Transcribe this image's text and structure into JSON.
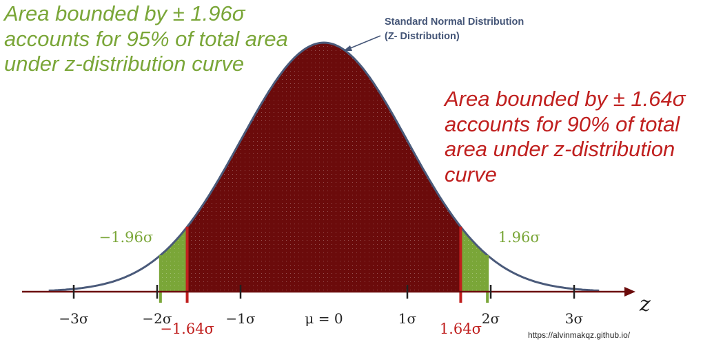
{
  "chart_data": {
    "type": "area",
    "title": "Standard Normal Distribution",
    "subtitle": "(Z- Distribution)",
    "x_axis_label": "z",
    "xlim": [
      -3.5,
      3.5
    ],
    "curve": {
      "mean": 0,
      "sd": 1
    },
    "tick_values": [
      -3,
      -2,
      -1,
      0,
      1,
      2,
      3
    ],
    "tick_labels": [
      "−3σ",
      "−2σ",
      "−1σ",
      "μ = 0",
      "1σ",
      "2σ",
      "3σ"
    ],
    "regions": [
      {
        "from": -1.96,
        "to": 1.96,
        "color": "#7aa638"
      },
      {
        "from": -1.64,
        "to": 1.64,
        "color": "#6b0b0b"
      }
    ],
    "bounds": [
      {
        "value": -1.96,
        "label": "−1.96σ",
        "color": "#7aa638"
      },
      {
        "value": 1.96,
        "label": "1.96σ",
        "color": "#7aa638"
      },
      {
        "value": -1.64,
        "label": "−1.64σ",
        "color": "#c0201f"
      },
      {
        "value": 1.64,
        "label": "1.64σ",
        "color": "#c0201f"
      }
    ],
    "annotations": [
      {
        "text": "Area bounded by ± 1.96σ accounts for 95% of total area under z-distribution curve",
        "color": "#7aa638"
      },
      {
        "text": "Area bounded by ± 1.64σ accounts for 90% of total area under z-distribution curve",
        "color": "#c0201f"
      }
    ],
    "curve_color": "#4a5a7a",
    "axis_color": "#6b0b0b"
  },
  "source_text": "https://alvinmakqz.github.io/"
}
